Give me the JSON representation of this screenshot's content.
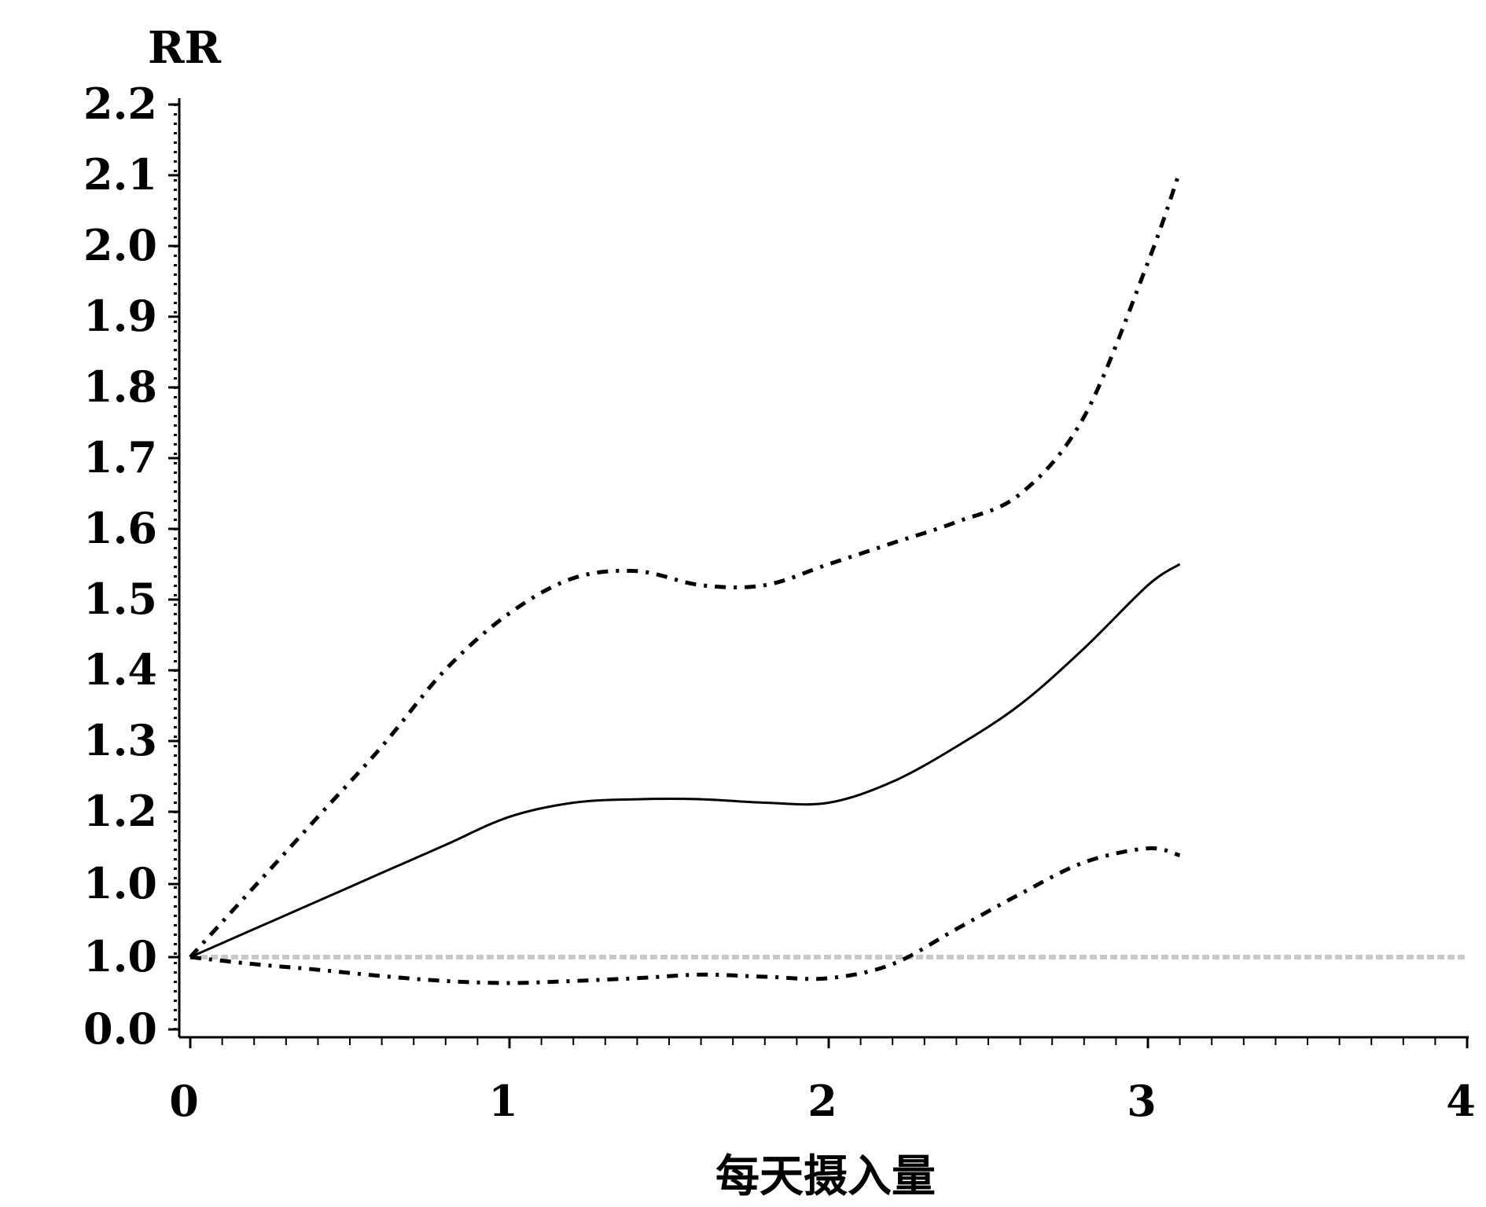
{
  "chart_data": {
    "type": "line",
    "title": "",
    "xlabel": "每天摄入量",
    "ylabel": "RR",
    "xlim": [
      0,
      4
    ],
    "x_ticks": [
      "0",
      "1",
      "2",
      "3",
      "4"
    ],
    "y_ticks": [
      "0.0",
      "1.0",
      "1.0",
      "1.2",
      "1.3",
      "1.4",
      "1.5",
      "1.6",
      "1.7",
      "1.8",
      "1.9",
      "2.0",
      "2.1",
      "2.2"
    ],
    "grid": false,
    "legend": "none",
    "reference_line": {
      "y": 1.0,
      "color": "#c8c8c8",
      "style": "dotted"
    },
    "x": [
      0,
      0.2,
      0.4,
      0.6,
      0.8,
      1.0,
      1.2,
      1.4,
      1.6,
      1.8,
      2.0,
      2.2,
      2.4,
      2.6,
      2.8,
      3.0,
      3.1
    ],
    "series": [
      {
        "role": "estimate",
        "style": "solid",
        "values": [
          1.0,
          1.04,
          1.08,
          1.12,
          1.16,
          1.2,
          1.22,
          1.225,
          1.225,
          1.22,
          1.22,
          1.25,
          1.3,
          1.36,
          1.44,
          1.53,
          1.56
        ]
      },
      {
        "role": "upper",
        "style": "dash-dot",
        "values": [
          1.0,
          1.1,
          1.2,
          1.3,
          1.41,
          1.49,
          1.54,
          1.55,
          1.53,
          1.53,
          1.56,
          1.59,
          1.62,
          1.66,
          1.77,
          1.99,
          2.12
        ]
      },
      {
        "role": "lower",
        "style": "dash-dot",
        "values": [
          1.0,
          0.99,
          0.982,
          0.973,
          0.966,
          0.963,
          0.966,
          0.97,
          0.975,
          0.972,
          0.97,
          0.99,
          1.04,
          1.09,
          1.135,
          1.155,
          1.145
        ]
      }
    ],
    "colors": {
      "lines": "#000000",
      "reference": "#c8c8c8",
      "background": "#ffffff"
    }
  }
}
